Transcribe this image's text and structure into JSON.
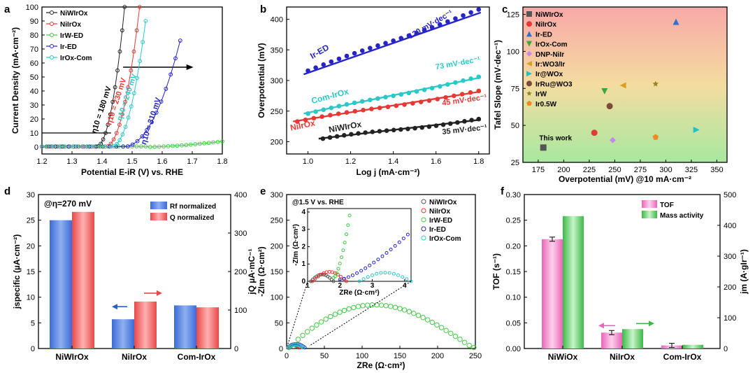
{
  "chart_data": [
    {
      "type": "line",
      "panel": "a",
      "xlabel": "Potential E-iR (V) vs. RHE",
      "ylabel": "Current Density (mA·cm⁻²)",
      "xlim": [
        1.2,
        1.8
      ],
      "ylim": [
        -5,
        100
      ],
      "xticks": [
        "1.2",
        "1.3",
        "1.4",
        "1.5",
        "1.6",
        "1.7",
        "1.8"
      ],
      "yticks": [
        "0",
        "10",
        "20",
        "30",
        "40",
        "50",
        "60",
        "70",
        "80",
        "90",
        "100"
      ],
      "series": [
        {
          "name": "NiWIrOx",
          "color": "#222222",
          "onset": 1.38,
          "end_x": 1.475,
          "end_y": 100
        },
        {
          "name": "NiIrOx",
          "color": "#e53935",
          "onset": 1.41,
          "end_x": 1.525,
          "end_y": 100
        },
        {
          "name": "IrW-ED",
          "color": "#43c943",
          "onset": 1.55,
          "end_x": 1.8,
          "end_y": 4
        },
        {
          "name": "Ir-ED",
          "color": "#2525c8",
          "onset": 1.47,
          "end_x": 1.66,
          "end_y": 76
        },
        {
          "name": "IrOx-Com",
          "color": "#2cc8c8",
          "onset": 1.43,
          "end_x": 1.545,
          "end_y": 90
        }
      ],
      "annotations": [
        "η10 = 180 mV",
        "η10 = 230 mV",
        "η10 = 240 mV",
        "η10 = 310 mV"
      ],
      "reference_line_y": 10
    },
    {
      "type": "line",
      "panel": "b",
      "xlabel": "Log j (mA·cm⁻²)",
      "ylabel": "Overpotential (mV)",
      "xlim": [
        0.9,
        1.85
      ],
      "ylim": [
        180,
        420
      ],
      "xticks": [
        "1.0",
        "1.2",
        "1.4",
        "1.6",
        "1.8"
      ],
      "yticks": [
        "200",
        "250",
        "300",
        "350",
        "400"
      ],
      "series": [
        {
          "name": "Ir-ED",
          "color": "#2525c8",
          "x": [
            1.0,
            1.8
          ],
          "y": [
            316,
            415
          ],
          "fit": [
            310,
            410
          ],
          "slope_label": "120 mV·dec⁻¹"
        },
        {
          "name": "Com-IrOx",
          "color": "#2cc8c8",
          "x": [
            1.0,
            1.8
          ],
          "y": [
            246,
            305
          ],
          "fit": [
            246,
            304
          ],
          "slope_label": "73 mV·dec⁻¹"
        },
        {
          "name": "NiIrOx",
          "color": "#e53935",
          "x": [
            0.95,
            1.8
          ],
          "y": [
            233,
            282
          ],
          "fit": [
            233,
            281
          ],
          "slope_label": "45 mV·dec⁻¹"
        },
        {
          "name": "NiWIrOx",
          "color": "#222222",
          "x": [
            1.07,
            1.8
          ],
          "y": [
            205,
            236
          ],
          "fit": [
            205,
            235
          ],
          "slope_label": "35 mV·dec⁻¹"
        }
      ]
    },
    {
      "type": "scatter",
      "panel": "c",
      "xlabel": "Overpotential (mV) @10 mA·cm⁻²",
      "ylabel": "Tafel Slope (mV·dec⁻¹)",
      "xlim": [
        160,
        360
      ],
      "ylim": [
        25,
        130
      ],
      "xticks": [
        "175",
        "200",
        "225",
        "250",
        "275",
        "300",
        "325",
        "350"
      ],
      "yticks": [
        "25",
        "50",
        "75",
        "100",
        "125"
      ],
      "note": "This work",
      "points": [
        {
          "name": "NiWIrOx",
          "x": 180,
          "y": 35,
          "color": "#555555",
          "shape": "square"
        },
        {
          "name": "NiIrOx",
          "x": 230,
          "y": 45,
          "color": "#e53935",
          "shape": "circle"
        },
        {
          "name": "Ir-ED",
          "x": 310,
          "y": 120,
          "color": "#2f6fd0",
          "shape": "tri-up"
        },
        {
          "name": "IrOx-Com",
          "x": 240,
          "y": 73,
          "color": "#3aa83a",
          "shape": "tri-down"
        },
        {
          "name": "DNP-NiIr",
          "x": 248,
          "y": 40,
          "color": "#c58ae8",
          "shape": "diamond"
        },
        {
          "name": "Ir:WO3/Ir",
          "x": 258,
          "y": 77,
          "color": "#d6a020",
          "shape": "tri-left"
        },
        {
          "name": "Ir@WOx",
          "x": 330,
          "y": 47,
          "color": "#22c0c0",
          "shape": "tri-right"
        },
        {
          "name": "IrRu@WO3",
          "x": 245,
          "y": 63,
          "color": "#7a4a3a",
          "shape": "circle"
        },
        {
          "name": "IrW",
          "x": 290,
          "y": 78,
          "color": "#8a8a20",
          "shape": "star"
        },
        {
          "name": "Ir0.5W",
          "x": 290,
          "y": 42,
          "color": "#f08a20",
          "shape": "pentagon"
        }
      ]
    },
    {
      "type": "bar",
      "panel": "d",
      "annotation": "@η=270 mV",
      "categories": [
        "NiWIrOx",
        "NiIrOx",
        "Com-IrOx"
      ],
      "ylabel_left": "jspecific (µA·cm⁻²)",
      "ylabel_right": "jQ µA·mC⁻¹",
      "ylim_left": [
        0,
        30
      ],
      "ylim_right": [
        0,
        400
      ],
      "yticks_left": [
        "0",
        "5",
        "10",
        "15",
        "20",
        "25",
        "30"
      ],
      "yticks_right": [
        "0",
        "100",
        "200",
        "300",
        "400"
      ],
      "series": [
        {
          "name": "Rf normalized",
          "color": "#2e5ec9",
          "axis": "left",
          "values": [
            25,
            5.7,
            8.4
          ]
        },
        {
          "name": "Q normalized",
          "color": "#e84848",
          "axis": "right",
          "values": [
            355,
            122,
            107
          ]
        }
      ]
    },
    {
      "type": "scatter",
      "panel": "e",
      "annotation": "@1.5 V vs. RHE",
      "xlabel": "ZRe (Ω·cm²)",
      "ylabel": "-ZIm (Ω·cm²)",
      "xlim": [
        0,
        250
      ],
      "ylim": [
        0,
        300
      ],
      "xticks": [
        "0",
        "50",
        "100",
        "150",
        "200",
        "250"
      ],
      "yticks": [
        "0",
        "50",
        "100",
        "150",
        "200",
        "250",
        "300"
      ],
      "inset": {
        "xlabel": "ZRe (Ω·cm²)",
        "ylabel": "-ZIm (Ω·cm²)",
        "xticks": [
          "1",
          "2",
          "3",
          "4"
        ],
        "yticks": [
          "0",
          "1",
          "2",
          "3",
          "4"
        ]
      },
      "series": [
        {
          "name": "NiWIrOx",
          "color": "#555555"
        },
        {
          "name": "NiIrOx",
          "color": "#e53935"
        },
        {
          "name": "IrW-ED",
          "color": "#43c943"
        },
        {
          "name": "Ir-ED",
          "color": "#2525c8"
        },
        {
          "name": "IrOx-Com",
          "color": "#2cc8c8"
        }
      ]
    },
    {
      "type": "bar",
      "panel": "f",
      "categories": [
        "NiWiOx",
        "NiIrOx",
        "Com-IrOx"
      ],
      "ylabel_left": "TOF (s⁻¹)",
      "ylabel_right": "jm (A·gIr⁻¹)",
      "ylim_left": [
        0,
        0.3
      ],
      "ylim_right": [
        0,
        500
      ],
      "yticks_left": [
        "0.00",
        "0.05",
        "0.10",
        "0.15",
        "0.20",
        "0.25",
        "0.30"
      ],
      "yticks_right": [
        "0",
        "100",
        "200",
        "300",
        "400",
        "500"
      ],
      "series": [
        {
          "name": "TOF",
          "color": "#e865b8",
          "axis": "left",
          "values": [
            0.213,
            0.031,
            0.006
          ]
        },
        {
          "name": "Mass activity",
          "color": "#3cb848",
          "axis": "right",
          "values": [
            430,
            63,
            12
          ]
        }
      ]
    }
  ]
}
